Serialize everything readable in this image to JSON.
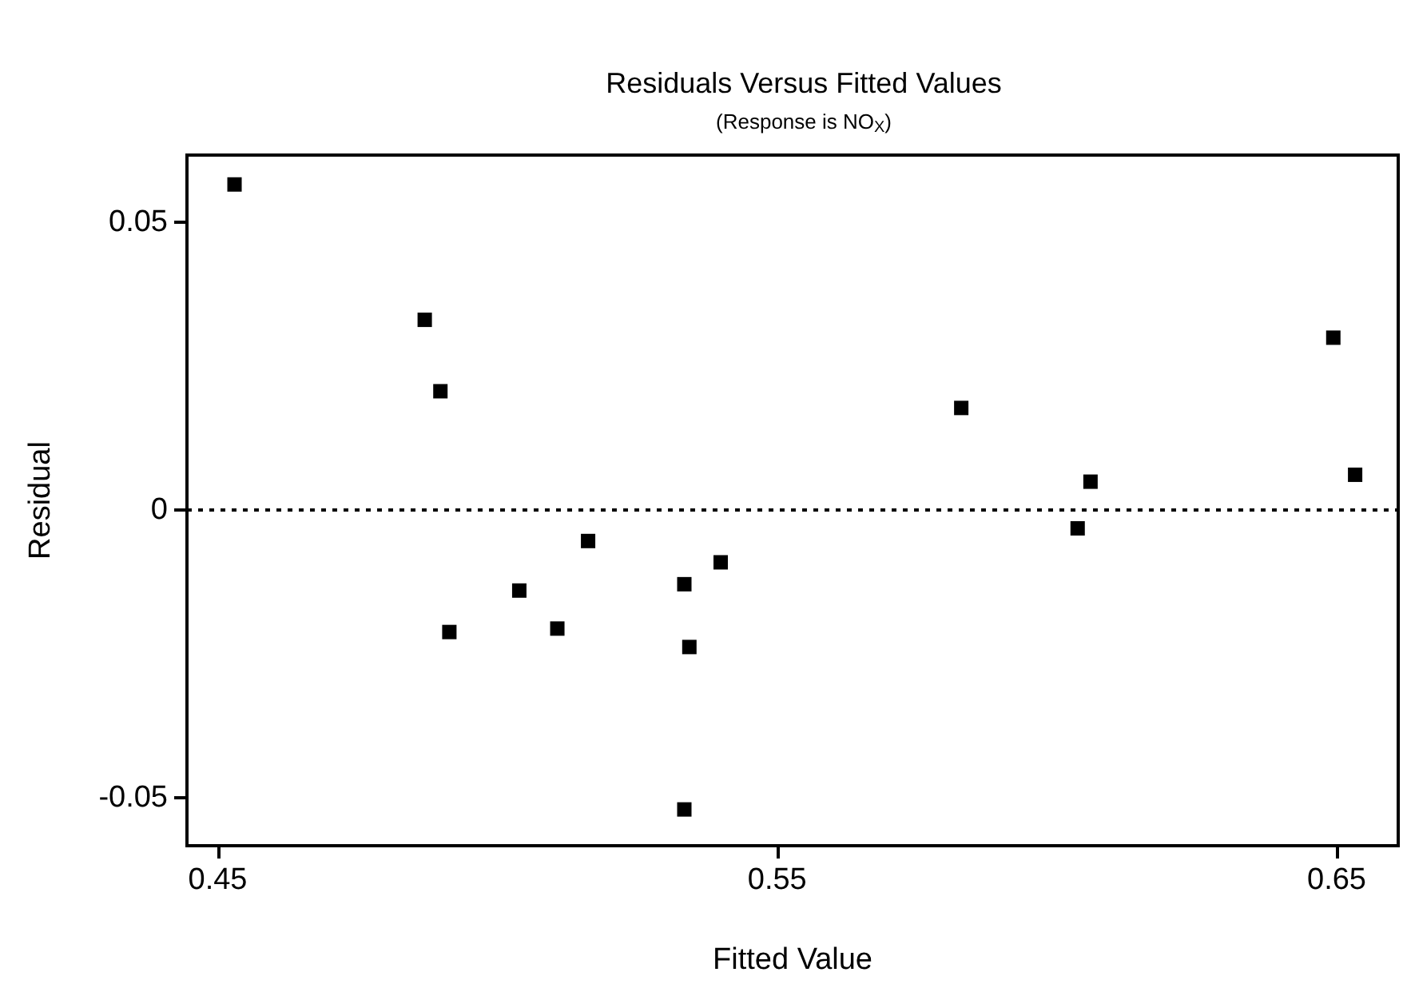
{
  "chart_data": {
    "type": "scatter",
    "title": "Residuals Versus Fitted Values",
    "subtitle": "(Response is NO$_{X}$)",
    "xlabel": "Fitted Value",
    "ylabel": "Residual",
    "x": [
      0.453,
      0.487,
      0.4898,
      0.4914,
      0.5039,
      0.5107,
      0.5162,
      0.5334,
      0.5343,
      0.5334,
      0.5399,
      0.5829,
      0.606,
      0.6037,
      0.6494,
      0.6533
    ],
    "values": [
      0.0565,
      0.033,
      0.0206,
      -0.0212,
      -0.014,
      -0.0206,
      -0.0054,
      -0.0129,
      -0.0238,
      -0.052,
      -0.0091,
      0.0177,
      0.0049,
      -0.0032,
      0.0299,
      0.0061
    ],
    "color": "#000000",
    "marker": "square",
    "xlim": [
      0.4445,
      0.661
    ],
    "ylim": [
      -0.0583,
      0.0616
    ],
    "xticks": [
      0.45,
      0.55,
      0.65
    ],
    "yticks": [
      -0.05,
      0,
      0.05
    ],
    "ref_lines": [
      {
        "axis": "y",
        "value": 0,
        "label": null,
        "color": "#000000",
        "line_style": "dotted"
      }
    ],
    "grid": false
  }
}
